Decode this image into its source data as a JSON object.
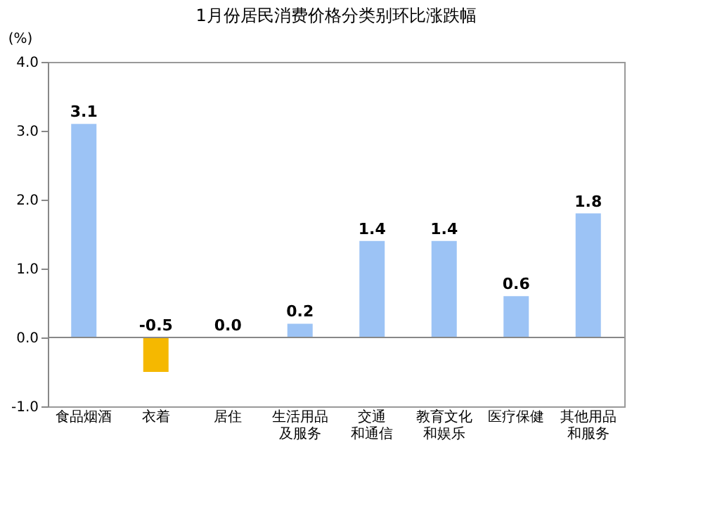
{
  "chart_data": {
    "type": "bar",
    "title": "1月份居民消费价格分类别环比涨跌幅",
    "ylabel": "(%)",
    "categories": [
      "食品烟酒",
      "衣着",
      "居住",
      "生活用品及服务",
      "交通和通信",
      "教育文化和娱乐",
      "医疗保健",
      "其他用品和服务"
    ],
    "values": [
      3.1,
      -0.5,
      0.0,
      0.2,
      1.4,
      1.4,
      0.6,
      1.8
    ],
    "colors": [
      "#9cc3f5",
      "#f5b800",
      "#9cc3f5",
      "#9cc3f5",
      "#9cc3f5",
      "#9cc3f5",
      "#9cc3f5",
      "#9cc3f5"
    ],
    "value_labels": [
      "3.1",
      "-0.5",
      "0.0",
      "0.2",
      "1.4",
      "1.4",
      "0.6",
      "1.8"
    ],
    "ylim": [
      -1,
      4
    ],
    "yticks": [
      {
        "value": -1,
        "label": "-1.0"
      },
      {
        "value": 0,
        "label": "0.0"
      },
      {
        "value": 1,
        "label": "1.0"
      },
      {
        "value": 2,
        "label": "2.0"
      },
      {
        "value": 3,
        "label": "3.0"
      },
      {
        "value": 4,
        "label": "4.0"
      }
    ],
    "ref_lines": [
      {
        "axis": "y",
        "value": 0,
        "color": "#888888"
      }
    ],
    "grid": false
  }
}
